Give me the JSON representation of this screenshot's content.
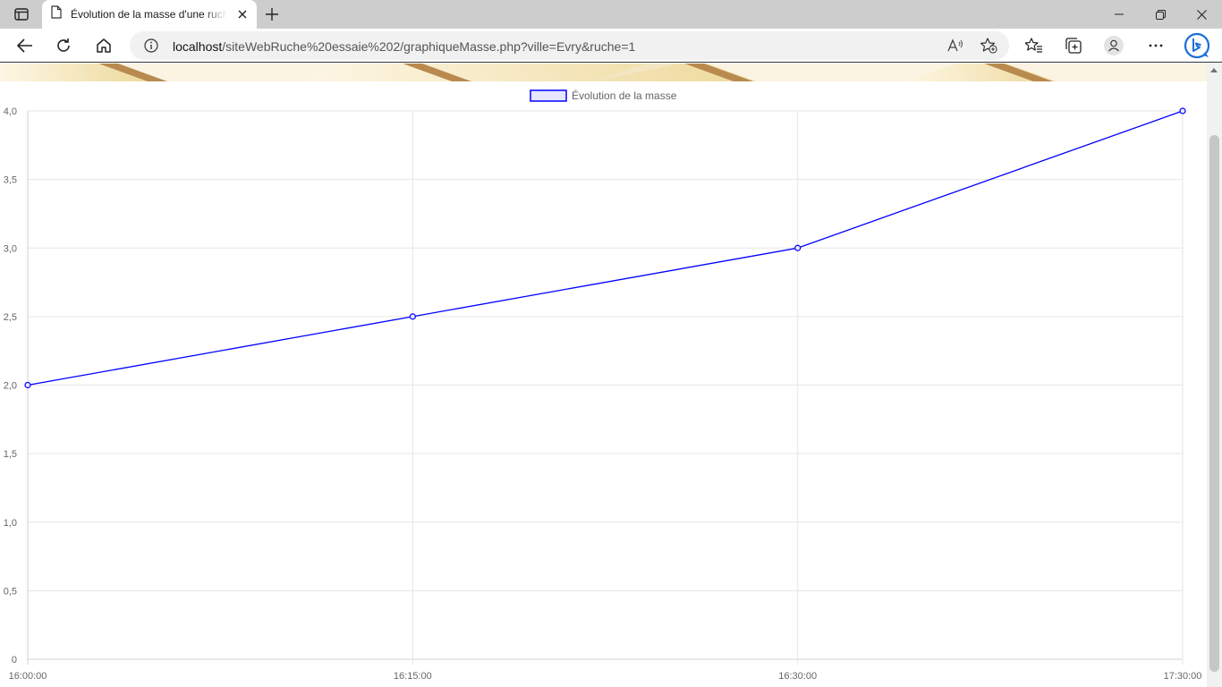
{
  "browser": {
    "tab": {
      "title": "Évolution de la masse d'une ruche"
    },
    "address": {
      "host": "localhost",
      "path": "/siteWebRuche%20essaie%202/graphiqueMasse.php?ville=Evry&ruche=1"
    },
    "icons": [
      "tab-actions-icon",
      "page-icon",
      "close-icon",
      "plus-icon",
      "minimize-icon",
      "restore-icon",
      "window-close-icon",
      "back-icon",
      "refresh-icon",
      "home-icon",
      "info-icon",
      "read-aloud-icon",
      "add-favorite-icon",
      "favorites-icon",
      "collections-icon",
      "profile-icon",
      "more-icon",
      "bing-icon"
    ]
  },
  "chart_data": {
    "type": "line",
    "legend": "Évolution de la masse",
    "legend_position": "top",
    "categories": [
      "16:00:00",
      "16:15:00",
      "16:30:00",
      "17:30:00"
    ],
    "series": [
      {
        "name": "Évolution de la masse",
        "values": [
          2.0,
          2.5,
          3.0,
          4.0
        ],
        "color": "#0000ff",
        "fill": "#e6e6ff"
      }
    ],
    "yticks": [
      "0",
      "0,5",
      "1,0",
      "1,5",
      "2,0",
      "2,5",
      "3,0",
      "3,5",
      "4,0"
    ],
    "ylim": [
      0,
      4
    ],
    "grid": true
  }
}
